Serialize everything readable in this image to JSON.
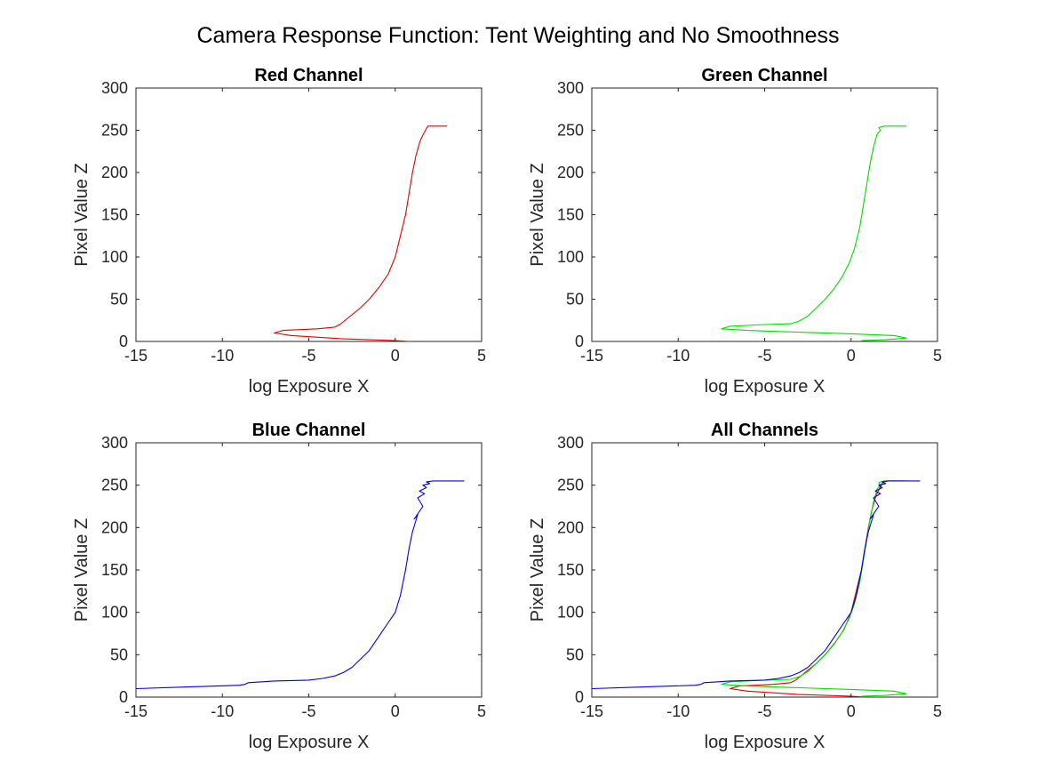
{
  "figure": {
    "title": "Camera Response Function: Tent Weighting and No Smoothness"
  },
  "colors": {
    "red": "#e00000",
    "green": "#00dd00",
    "blue": "#0000e0",
    "axis": "#262626"
  },
  "chart_data": [
    {
      "type": "line",
      "title": "Red Channel",
      "xlabel": "log Exposure X",
      "ylabel": "Pixel Value Z",
      "xlim": [
        -15,
        5
      ],
      "ylim": [
        0,
        300
      ],
      "xticks": [
        -15,
        -10,
        -5,
        0,
        5
      ],
      "yticks": [
        0,
        50,
        100,
        150,
        200,
        250,
        300
      ],
      "grid": false,
      "series": [
        {
          "color_key": "red",
          "points": [
            [
              0.8,
              0
            ],
            [
              0,
              1
            ],
            [
              -3,
              3
            ],
            [
              -6,
              7
            ],
            [
              -7,
              10
            ],
            [
              -6.5,
              13
            ],
            [
              -4.5,
              15
            ],
            [
              -3.5,
              17
            ],
            [
              -3.2,
              20
            ],
            [
              -2.6,
              30
            ],
            [
              -2,
              40
            ],
            [
              -1.5,
              50
            ],
            [
              -0.9,
              65
            ],
            [
              -0.4,
              80
            ],
            [
              0,
              100
            ],
            [
              0.3,
              125
            ],
            [
              0.6,
              150
            ],
            [
              0.8,
              175
            ],
            [
              1.0,
              200
            ],
            [
              1.2,
              220
            ],
            [
              1.4,
              235
            ],
            [
              1.5,
              240
            ],
            [
              1.7,
              248
            ],
            [
              1.8,
              252
            ],
            [
              1.9,
              255
            ],
            [
              3,
              255
            ]
          ]
        }
      ]
    },
    {
      "type": "line",
      "title": "Green Channel",
      "xlabel": "log Exposure X",
      "ylabel": "Pixel Value Z",
      "xlim": [
        -15,
        5
      ],
      "ylim": [
        0,
        300
      ],
      "xticks": [
        -15,
        -10,
        -5,
        0,
        5
      ],
      "yticks": [
        0,
        50,
        100,
        150,
        200,
        250,
        300
      ],
      "grid": false,
      "series": [
        {
          "color_key": "green",
          "points": [
            [
              0.6,
              1
            ],
            [
              2,
              2
            ],
            [
              3.2,
              4
            ],
            [
              2.5,
              7
            ],
            [
              0,
              9
            ],
            [
              -3,
              11
            ],
            [
              -6,
              13
            ],
            [
              -7.5,
              15
            ],
            [
              -7,
              18
            ],
            [
              -5,
              20
            ],
            [
              -3.5,
              21
            ],
            [
              -3,
              24
            ],
            [
              -2.5,
              30
            ],
            [
              -2,
              40
            ],
            [
              -1.5,
              50
            ],
            [
              -1,
              62
            ],
            [
              -0.5,
              77
            ],
            [
              -0.1,
              93
            ],
            [
              0.2,
              110
            ],
            [
              0.5,
              135
            ],
            [
              0.7,
              160
            ],
            [
              0.9,
              185
            ],
            [
              1.1,
              210
            ],
            [
              1.3,
              230
            ],
            [
              1.5,
              245
            ],
            [
              1.7,
              250
            ],
            [
              1.6,
              253
            ],
            [
              1.9,
              255
            ],
            [
              3.2,
              255
            ]
          ]
        }
      ]
    },
    {
      "type": "line",
      "title": "Blue Channel",
      "xlabel": "log Exposure X",
      "ylabel": "Pixel Value Z",
      "xlim": [
        -15,
        5
      ],
      "ylim": [
        0,
        300
      ],
      "xticks": [
        -15,
        -10,
        -5,
        0,
        5
      ],
      "yticks": [
        0,
        50,
        100,
        150,
        200,
        250,
        300
      ],
      "grid": false,
      "series": [
        {
          "color_key": "blue",
          "points": [
            [
              -15,
              10
            ],
            [
              -12,
              12
            ],
            [
              -9,
              14
            ],
            [
              -8.7,
              15
            ],
            [
              -8.5,
              17
            ],
            [
              -7,
              19
            ],
            [
              -5,
              20
            ],
            [
              -4.2,
              22
            ],
            [
              -3.5,
              25
            ],
            [
              -3,
              29
            ],
            [
              -2.5,
              35
            ],
            [
              -2,
              45
            ],
            [
              -1.5,
              55
            ],
            [
              -1,
              70
            ],
            [
              -0.5,
              85
            ],
            [
              0,
              100
            ],
            [
              0.3,
              120
            ],
            [
              0.6,
              150
            ],
            [
              0.8,
              175
            ],
            [
              1.0,
              195
            ],
            [
              1.3,
              215
            ],
            [
              1.1,
              210
            ],
            [
              1.6,
              225
            ],
            [
              1.3,
              235
            ],
            [
              1.7,
              240
            ],
            [
              1.4,
              243
            ],
            [
              1.8,
              247
            ],
            [
              1.6,
              250
            ],
            [
              2.0,
              252
            ],
            [
              1.8,
              254
            ],
            [
              2.2,
              255
            ],
            [
              4,
              255
            ]
          ]
        }
      ]
    },
    {
      "type": "line",
      "title": "All Channels",
      "xlabel": "log Exposure X",
      "ylabel": "Pixel Value Z",
      "xlim": [
        -15,
        5
      ],
      "ylim": [
        0,
        300
      ],
      "xticks": [
        -15,
        -10,
        -5,
        0,
        5
      ],
      "yticks": [
        0,
        50,
        100,
        150,
        200,
        250,
        300
      ],
      "grid": false,
      "series": [
        {
          "color_key": "red",
          "points": [
            [
              0.8,
              0
            ],
            [
              0,
              1
            ],
            [
              -3,
              3
            ],
            [
              -6,
              7
            ],
            [
              -7,
              10
            ],
            [
              -6.5,
              13
            ],
            [
              -4.5,
              15
            ],
            [
              -3.5,
              17
            ],
            [
              -3.2,
              20
            ],
            [
              -2.6,
              30
            ],
            [
              -2,
              40
            ],
            [
              -1.5,
              50
            ],
            [
              -0.9,
              65
            ],
            [
              -0.4,
              80
            ],
            [
              0,
              100
            ],
            [
              0.3,
              125
            ],
            [
              0.6,
              150
            ],
            [
              0.8,
              175
            ],
            [
              1.0,
              200
            ],
            [
              1.2,
              220
            ],
            [
              1.4,
              235
            ],
            [
              1.5,
              240
            ],
            [
              1.7,
              248
            ],
            [
              1.8,
              252
            ],
            [
              1.9,
              255
            ],
            [
              3,
              255
            ]
          ]
        },
        {
          "color_key": "green",
          "points": [
            [
              0.6,
              1
            ],
            [
              2,
              2
            ],
            [
              3.2,
              4
            ],
            [
              2.5,
              7
            ],
            [
              0,
              9
            ],
            [
              -3,
              11
            ],
            [
              -6,
              13
            ],
            [
              -7.5,
              15
            ],
            [
              -7,
              18
            ],
            [
              -5,
              20
            ],
            [
              -3.5,
              21
            ],
            [
              -3,
              24
            ],
            [
              -2.5,
              30
            ],
            [
              -2,
              40
            ],
            [
              -1.5,
              50
            ],
            [
              -1,
              62
            ],
            [
              -0.5,
              77
            ],
            [
              -0.1,
              93
            ],
            [
              0.2,
              110
            ],
            [
              0.5,
              135
            ],
            [
              0.7,
              160
            ],
            [
              0.9,
              185
            ],
            [
              1.1,
              210
            ],
            [
              1.3,
              230
            ],
            [
              1.5,
              245
            ],
            [
              1.7,
              250
            ],
            [
              1.6,
              253
            ],
            [
              1.9,
              255
            ],
            [
              3.2,
              255
            ]
          ]
        },
        {
          "color_key": "blue",
          "points": [
            [
              -15,
              10
            ],
            [
              -12,
              12
            ],
            [
              -9,
              14
            ],
            [
              -8.7,
              15
            ],
            [
              -8.5,
              17
            ],
            [
              -7,
              19
            ],
            [
              -5,
              20
            ],
            [
              -4.2,
              22
            ],
            [
              -3.5,
              25
            ],
            [
              -3,
              29
            ],
            [
              -2.5,
              35
            ],
            [
              -2,
              45
            ],
            [
              -1.5,
              55
            ],
            [
              -1,
              70
            ],
            [
              -0.5,
              85
            ],
            [
              0,
              100
            ],
            [
              0.3,
              120
            ],
            [
              0.6,
              150
            ],
            [
              0.8,
              175
            ],
            [
              1.0,
              195
            ],
            [
              1.3,
              215
            ],
            [
              1.1,
              210
            ],
            [
              1.6,
              225
            ],
            [
              1.3,
              235
            ],
            [
              1.7,
              240
            ],
            [
              1.4,
              243
            ],
            [
              1.8,
              247
            ],
            [
              1.6,
              250
            ],
            [
              2.0,
              252
            ],
            [
              1.8,
              254
            ],
            [
              2.2,
              255
            ],
            [
              4,
              255
            ]
          ]
        }
      ]
    }
  ]
}
